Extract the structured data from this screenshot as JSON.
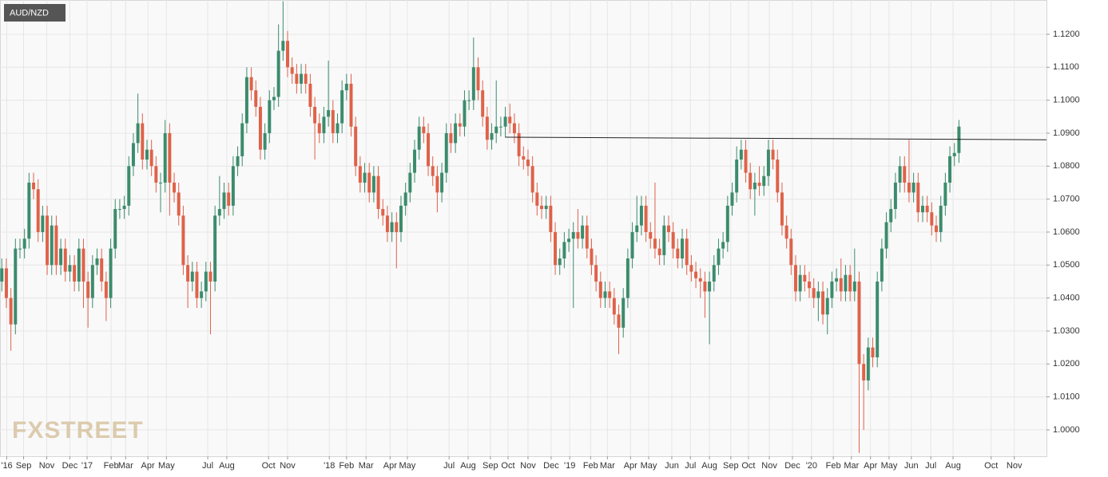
{
  "chart_data": {
    "type": "candlestick",
    "title": "AUD/NZD",
    "watermark": "FXSTREET",
    "up_color": "#3b8c6c",
    "down_color": "#df6249",
    "grid": true,
    "xlim": [
      -0.4,
      230.3
    ],
    "ylim": [
      0.992,
      1.1304
    ],
    "yticks": [
      {
        "value": 1.0,
        "label": "1.0000"
      },
      {
        "value": 1.01,
        "label": "1.0100"
      },
      {
        "value": 1.02,
        "label": "1.0200"
      },
      {
        "value": 1.03,
        "label": "1.0300"
      },
      {
        "value": 1.04,
        "label": "1.0400"
      },
      {
        "value": 1.05,
        "label": "1.0500"
      },
      {
        "value": 1.06,
        "label": "1.0600"
      },
      {
        "value": 1.07,
        "label": "1.0700"
      },
      {
        "value": 1.08,
        "label": "1.0800"
      },
      {
        "value": 1.09,
        "label": "1.0900"
      },
      {
        "value": 1.1,
        "label": "1.1000"
      },
      {
        "value": 1.11,
        "label": "1.1100"
      },
      {
        "value": 1.12,
        "label": "1.1200"
      }
    ],
    "xticks": [
      {
        "value": 1.1,
        "label": "'16"
      },
      {
        "value": 4.8,
        "label": "Sep"
      },
      {
        "value": 9.9,
        "label": "Nov"
      },
      {
        "value": 15,
        "label": "Dec"
      },
      {
        "value": 18.8,
        "label": "'17"
      },
      {
        "value": 24.1,
        "label": "Feb"
      },
      {
        "value": 27.3,
        "label": "Mar"
      },
      {
        "value": 32.2,
        "label": "Apr"
      },
      {
        "value": 36.3,
        "label": "May"
      },
      {
        "value": 45.4,
        "label": "Jul"
      },
      {
        "value": 49.6,
        "label": "Aug"
      },
      {
        "value": 58.8,
        "label": "Oct"
      },
      {
        "value": 63,
        "label": "Nov"
      },
      {
        "value": 72.2,
        "label": "'18"
      },
      {
        "value": 76,
        "label": "Feb"
      },
      {
        "value": 80.3,
        "label": "Mar"
      },
      {
        "value": 85.6,
        "label": "Apr"
      },
      {
        "value": 89.4,
        "label": "May"
      },
      {
        "value": 98.6,
        "label": "Jul"
      },
      {
        "value": 102.8,
        "label": "Aug"
      },
      {
        "value": 107.7,
        "label": "Sep"
      },
      {
        "value": 111.6,
        "label": "Oct"
      },
      {
        "value": 116,
        "label": "Nov"
      },
      {
        "value": 121.1,
        "label": "Dec"
      },
      {
        "value": 125.2,
        "label": "'19"
      },
      {
        "value": 129.8,
        "label": "Feb"
      },
      {
        "value": 133.5,
        "label": "Mar"
      },
      {
        "value": 138.6,
        "label": "Apr"
      },
      {
        "value": 142.6,
        "label": "May"
      },
      {
        "value": 147.7,
        "label": "Jun"
      },
      {
        "value": 151.8,
        "label": "Jul"
      },
      {
        "value": 156,
        "label": "Aug"
      },
      {
        "value": 160.7,
        "label": "Sep"
      },
      {
        "value": 164.6,
        "label": "Oct"
      },
      {
        "value": 169.2,
        "label": "Nov"
      },
      {
        "value": 174.3,
        "label": "Dec"
      },
      {
        "value": 178.5,
        "label": "'20"
      },
      {
        "value": 183.3,
        "label": "Feb"
      },
      {
        "value": 187.3,
        "label": "Mar"
      },
      {
        "value": 191.5,
        "label": "Apr"
      },
      {
        "value": 195.6,
        "label": "May"
      },
      {
        "value": 200.5,
        "label": "Jun"
      },
      {
        "value": 204.8,
        "label": "Jul"
      },
      {
        "value": 209.7,
        "label": "Aug"
      },
      {
        "value": 218.1,
        "label": "Oct"
      },
      {
        "value": 223.2,
        "label": "Nov"
      }
    ],
    "trend_line": {
      "x": [
        110.9,
        230.3
      ],
      "y": [
        1.0888,
        1.088
      ]
    },
    "open": [
      1.045,
      1.049,
      1.04,
      1.032,
      1.055,
      1.055,
      1.058,
      1.075,
      1.073,
      1.06,
      1.065,
      1.05,
      1.062,
      1.05,
      1.055,
      1.048,
      1.05,
      1.045,
      1.055,
      1.045,
      1.04,
      1.05,
      1.052,
      1.045,
      1.04,
      1.055,
      1.067,
      1.067,
      1.068,
      1.08,
      1.087,
      1.093,
      1.082,
      1.085,
      1.08,
      1.075,
      1.075,
      1.09,
      1.075,
      1.072,
      1.065,
      1.05,
      1.045,
      1.048,
      1.04,
      1.042,
      1.048,
      1.045,
      1.065,
      1.067,
      1.072,
      1.068,
      1.08,
      1.083,
      1.093,
      1.107,
      1.103,
      1.098,
      1.085,
      1.09,
      1.1,
      1.101,
      1.115,
      1.118,
      1.11,
      1.108,
      1.105,
      1.108,
      1.105,
      1.098,
      1.093,
      1.09,
      1.095,
      1.097,
      1.09,
      1.093,
      1.103,
      1.105,
      1.092,
      1.08,
      1.075,
      1.078,
      1.072,
      1.077,
      1.067,
      1.065,
      1.06,
      1.063,
      1.06,
      1.068,
      1.072,
      1.078,
      1.085,
      1.092,
      1.09,
      1.08,
      1.077,
      1.072,
      1.078,
      1.09,
      1.087,
      1.093,
      1.092,
      1.1,
      1.1,
      1.11,
      1.103,
      1.095,
      1.088,
      1.09,
      1.092,
      1.092,
      1.095,
      1.093,
      1.09,
      1.083,
      1.082,
      1.08,
      1.072,
      1.068,
      1.067,
      1.068,
      1.06,
      1.05,
      1.052,
      1.057,
      1.058,
      1.06,
      1.058,
      1.062,
      1.055,
      1.05,
      1.045,
      1.04,
      1.042,
      1.04,
      1.035,
      1.031,
      1.04,
      1.052,
      1.06,
      1.062,
      1.068,
      1.06,
      1.058,
      1.055,
      1.053,
      1.062,
      1.06,
      1.055,
      1.052,
      1.058,
      1.05,
      1.048,
      1.046,
      1.045,
      1.042,
      1.045,
      1.05,
      1.055,
      1.057,
      1.068,
      1.072,
      1.082,
      1.085,
      1.078,
      1.073,
      1.075,
      1.074,
      1.077,
      1.085,
      1.082,
      1.072,
      1.062,
      1.058,
      1.05,
      1.042,
      1.047,
      1.045,
      1.043,
      1.04,
      1.042,
      1.035,
      1.04,
      1.045,
      1.046,
      1.042,
      1.047,
      1.042,
      1.045,
      1.02,
      1.015,
      1.025,
      1.022,
      1.045,
      1.055,
      1.063,
      1.067,
      1.075,
      1.08,
      1.075,
      1.072,
      1.075,
      1.066,
      1.068,
      1.066,
      1.062,
      1.06,
      1.068,
      1.075,
      1.083,
      1.084
    ],
    "high": [
      1.052,
      1.052,
      1.043,
      1.058,
      1.058,
      1.061,
      1.078,
      1.078,
      1.076,
      1.068,
      1.068,
      1.065,
      1.065,
      1.058,
      1.058,
      1.053,
      1.053,
      1.058,
      1.058,
      1.048,
      1.053,
      1.055,
      1.055,
      1.048,
      1.058,
      1.07,
      1.07,
      1.071,
      1.083,
      1.09,
      1.102,
      1.096,
      1.088,
      1.088,
      1.083,
      1.078,
      1.094,
      1.093,
      1.078,
      1.075,
      1.068,
      1.053,
      1.051,
      1.051,
      1.045,
      1.051,
      1.051,
      1.068,
      1.077,
      1.075,
      1.075,
      1.083,
      1.086,
      1.096,
      1.11,
      1.11,
      1.106,
      1.101,
      1.093,
      1.103,
      1.104,
      1.123,
      1.13,
      1.121,
      1.113,
      1.111,
      1.111,
      1.111,
      1.108,
      1.101,
      1.096,
      1.098,
      1.112,
      1.1,
      1.096,
      1.106,
      1.108,
      1.108,
      1.095,
      1.083,
      1.081,
      1.081,
      1.08,
      1.08,
      1.07,
      1.068,
      1.066,
      1.066,
      1.071,
      1.075,
      1.081,
      1.088,
      1.095,
      1.095,
      1.093,
      1.083,
      1.08,
      1.081,
      1.093,
      1.093,
      1.096,
      1.096,
      1.103,
      1.103,
      1.119,
      1.113,
      1.106,
      1.098,
      1.093,
      1.106,
      1.095,
      1.098,
      1.099,
      1.096,
      1.093,
      1.086,
      1.085,
      1.083,
      1.075,
      1.071,
      1.071,
      1.071,
      1.063,
      1.055,
      1.06,
      1.061,
      1.063,
      1.067,
      1.065,
      1.065,
      1.058,
      1.053,
      1.048,
      1.045,
      1.045,
      1.043,
      1.038,
      1.043,
      1.055,
      1.063,
      1.071,
      1.071,
      1.071,
      1.063,
      1.075,
      1.058,
      1.065,
      1.065,
      1.063,
      1.058,
      1.061,
      1.061,
      1.053,
      1.051,
      1.049,
      1.048,
      1.048,
      1.053,
      1.058,
      1.06,
      1.071,
      1.075,
      1.086,
      1.088,
      1.088,
      1.081,
      1.078,
      1.08,
      1.08,
      1.088,
      1.088,
      1.085,
      1.075,
      1.065,
      1.061,
      1.053,
      1.05,
      1.05,
      1.048,
      1.046,
      1.045,
      1.045,
      1.043,
      1.048,
      1.049,
      1.052,
      1.05,
      1.05,
      1.055,
      1.048,
      1.023,
      1.028,
      1.028,
      1.048,
      1.058,
      1.066,
      1.07,
      1.078,
      1.083,
      1.083,
      1.088,
      1.078,
      1.078,
      1.071,
      1.071,
      1.069,
      1.065,
      1.071,
      1.078,
      1.086,
      1.087,
      1.094
    ],
    "low": [
      1.042,
      1.037,
      1.024,
      1.029,
      1.052,
      1.052,
      1.055,
      1.07,
      1.057,
      1.057,
      1.047,
      1.047,
      1.047,
      1.047,
      1.045,
      1.045,
      1.042,
      1.042,
      1.037,
      1.031,
      1.037,
      1.047,
      1.042,
      1.033,
      1.037,
      1.052,
      1.064,
      1.064,
      1.065,
      1.077,
      1.084,
      1.079,
      1.079,
      1.077,
      1.072,
      1.066,
      1.072,
      1.065,
      1.069,
      1.062,
      1.047,
      1.037,
      1.042,
      1.037,
      1.037,
      1.039,
      1.029,
      1.042,
      1.062,
      1.064,
      1.065,
      1.065,
      1.077,
      1.08,
      1.09,
      1.1,
      1.095,
      1.082,
      1.082,
      1.087,
      1.097,
      1.098,
      1.112,
      1.107,
      1.105,
      1.102,
      1.102,
      1.102,
      1.095,
      1.082,
      1.087,
      1.087,
      1.092,
      1.087,
      1.087,
      1.09,
      1.1,
      1.089,
      1.077,
      1.072,
      1.072,
      1.069,
      1.069,
      1.064,
      1.062,
      1.057,
      1.057,
      1.049,
      1.057,
      1.065,
      1.069,
      1.075,
      1.082,
      1.087,
      1.077,
      1.074,
      1.066,
      1.069,
      1.075,
      1.084,
      1.084,
      1.089,
      1.089,
      1.097,
      1.097,
      1.1,
      1.092,
      1.085,
      1.085,
      1.087,
      1.089,
      1.089,
      1.09,
      1.087,
      1.08,
      1.079,
      1.077,
      1.069,
      1.065,
      1.064,
      1.064,
      1.057,
      1.047,
      1.047,
      1.049,
      1.054,
      1.037,
      1.055,
      1.055,
      1.052,
      1.047,
      1.042,
      1.037,
      1.037,
      1.037,
      1.032,
      1.023,
      1.028,
      1.037,
      1.049,
      1.057,
      1.059,
      1.057,
      1.055,
      1.052,
      1.05,
      1.05,
      1.057,
      1.052,
      1.049,
      1.049,
      1.047,
      1.045,
      1.043,
      1.04,
      1.034,
      1.026,
      1.042,
      1.047,
      1.052,
      1.054,
      1.065,
      1.069,
      1.079,
      1.075,
      1.07,
      1.065,
      1.071,
      1.071,
      1.074,
      1.079,
      1.069,
      1.059,
      1.055,
      1.047,
      1.039,
      1.039,
      1.042,
      1.04,
      1.037,
      1.033,
      1.032,
      1.029,
      1.037,
      1.042,
      1.039,
      1.039,
      1.039,
      1.039,
      0.993,
      1.0,
      1.012,
      1.019,
      1.019,
      1.042,
      1.052,
      1.06,
      1.064,
      1.072,
      1.072,
      1.069,
      1.069,
      1.063,
      1.063,
      1.063,
      1.059,
      1.057,
      1.057,
      1.065,
      1.072,
      1.08,
      1.081
    ],
    "close": [
      1.049,
      1.04,
      1.032,
      1.055,
      1.055,
      1.058,
      1.075,
      1.073,
      1.06,
      1.065,
      1.05,
      1.062,
      1.05,
      1.055,
      1.048,
      1.05,
      1.045,
      1.055,
      1.045,
      1.04,
      1.05,
      1.052,
      1.045,
      1.04,
      1.055,
      1.067,
      1.067,
      1.068,
      1.08,
      1.087,
      1.093,
      1.082,
      1.085,
      1.08,
      1.075,
      1.075,
      1.09,
      1.075,
      1.072,
      1.065,
      1.05,
      1.045,
      1.048,
      1.04,
      1.042,
      1.048,
      1.045,
      1.065,
      1.067,
      1.072,
      1.068,
      1.08,
      1.083,
      1.093,
      1.107,
      1.103,
      1.098,
      1.085,
      1.09,
      1.1,
      1.101,
      1.115,
      1.118,
      1.11,
      1.108,
      1.105,
      1.108,
      1.105,
      1.098,
      1.093,
      1.09,
      1.095,
      1.097,
      1.09,
      1.093,
      1.103,
      1.105,
      1.092,
      1.08,
      1.075,
      1.078,
      1.072,
      1.077,
      1.067,
      1.065,
      1.06,
      1.063,
      1.06,
      1.068,
      1.072,
      1.078,
      1.085,
      1.092,
      1.09,
      1.08,
      1.077,
      1.072,
      1.078,
      1.09,
      1.087,
      1.093,
      1.092,
      1.1,
      1.1,
      1.11,
      1.103,
      1.095,
      1.088,
      1.09,
      1.092,
      1.092,
      1.095,
      1.093,
      1.09,
      1.083,
      1.082,
      1.08,
      1.072,
      1.068,
      1.067,
      1.068,
      1.06,
      1.05,
      1.052,
      1.057,
      1.058,
      1.06,
      1.058,
      1.062,
      1.055,
      1.05,
      1.045,
      1.04,
      1.042,
      1.04,
      1.035,
      1.031,
      1.04,
      1.052,
      1.06,
      1.062,
      1.068,
      1.06,
      1.058,
      1.055,
      1.053,
      1.062,
      1.06,
      1.055,
      1.052,
      1.058,
      1.05,
      1.048,
      1.046,
      1.045,
      1.042,
      1.045,
      1.05,
      1.055,
      1.057,
      1.068,
      1.072,
      1.082,
      1.085,
      1.078,
      1.073,
      1.075,
      1.074,
      1.077,
      1.085,
      1.082,
      1.072,
      1.062,
      1.058,
      1.05,
      1.042,
      1.047,
      1.045,
      1.043,
      1.04,
      1.042,
      1.035,
      1.04,
      1.045,
      1.046,
      1.042,
      1.047,
      1.042,
      1.045,
      1.02,
      1.015,
      1.025,
      1.022,
      1.045,
      1.055,
      1.063,
      1.067,
      1.075,
      1.08,
      1.075,
      1.072,
      1.075,
      1.066,
      1.068,
      1.066,
      1.062,
      1.06,
      1.068,
      1.075,
      1.083,
      1.084,
      1.092
    ]
  }
}
